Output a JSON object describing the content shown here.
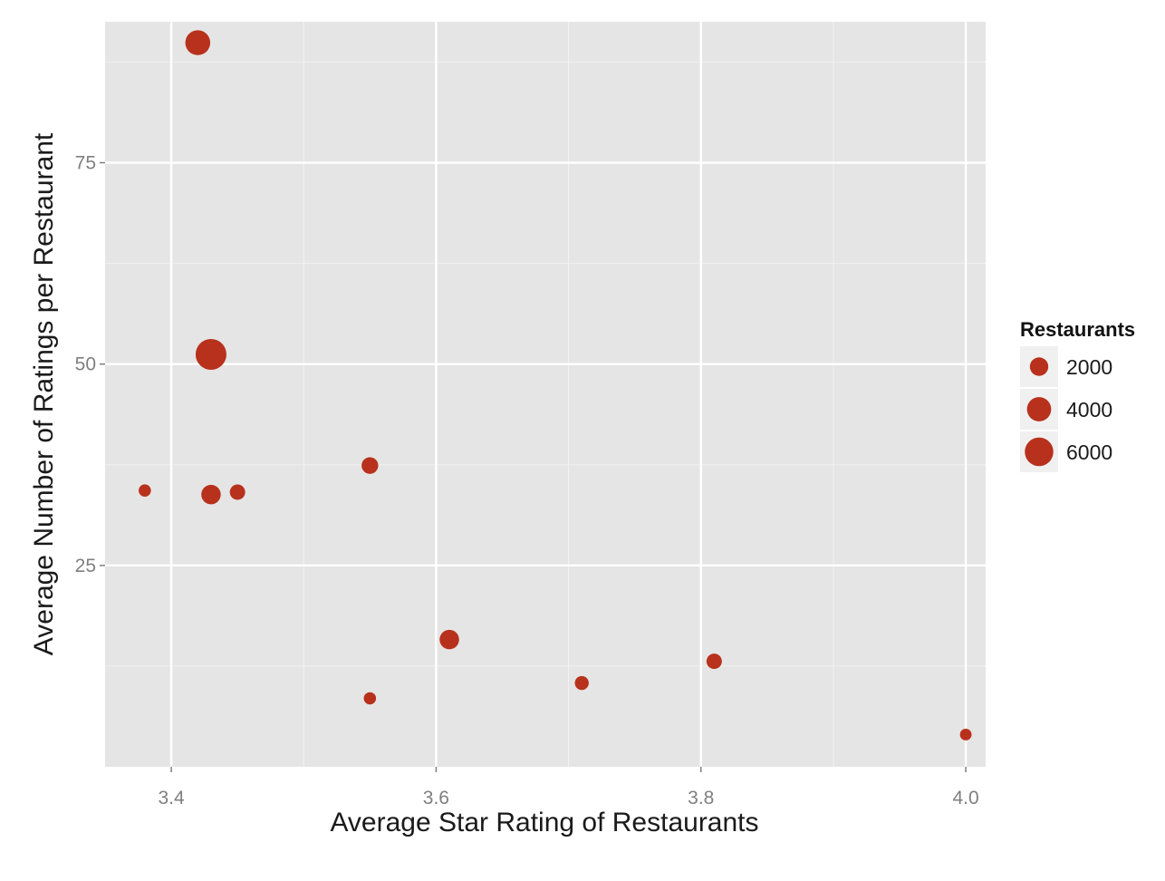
{
  "chart_data": {
    "type": "scatter",
    "title": "",
    "xlabel": "Average Star Rating of Restaurants",
    "ylabel": "Average Number of Ratings per Restaurant",
    "xlim": [
      3.35,
      4.015
    ],
    "ylim": [
      0,
      92.5
    ],
    "x_ticks": [
      "3.4",
      "3.6",
      "3.8",
      "4.0"
    ],
    "y_ticks": [
      "25",
      "50",
      "75"
    ],
    "grid": true,
    "legend_position": "right",
    "size_legend": {
      "title": "Restaurants",
      "entries": [
        {
          "label": "2000",
          "value": 2000
        },
        {
          "label": "4000",
          "value": 4000
        },
        {
          "label": "6000",
          "value": 6000
        }
      ]
    },
    "colors": {
      "point": "#b8311c",
      "panel": "#e5e5e5",
      "grid_major": "#ffffff",
      "grid_minor": "#f2f2f2",
      "key_bg": "#f0f0f0"
    },
    "points": [
      {
        "x": 3.38,
        "y": 34.3,
        "size": 600
      },
      {
        "x": 3.42,
        "y": 89.9,
        "size": 4300
      },
      {
        "x": 3.43,
        "y": 51.2,
        "size": 7200
      },
      {
        "x": 3.43,
        "y": 33.8,
        "size": 2300
      },
      {
        "x": 3.45,
        "y": 34.1,
        "size": 1200
      },
      {
        "x": 3.55,
        "y": 37.4,
        "size": 1500
      },
      {
        "x": 3.55,
        "y": 8.5,
        "size": 600
      },
      {
        "x": 3.61,
        "y": 15.8,
        "size": 2300
      },
      {
        "x": 3.71,
        "y": 10.4,
        "size": 900
      },
      {
        "x": 3.81,
        "y": 13.1,
        "size": 1200
      },
      {
        "x": 4.0,
        "y": 4.0,
        "size": 500
      }
    ]
  }
}
